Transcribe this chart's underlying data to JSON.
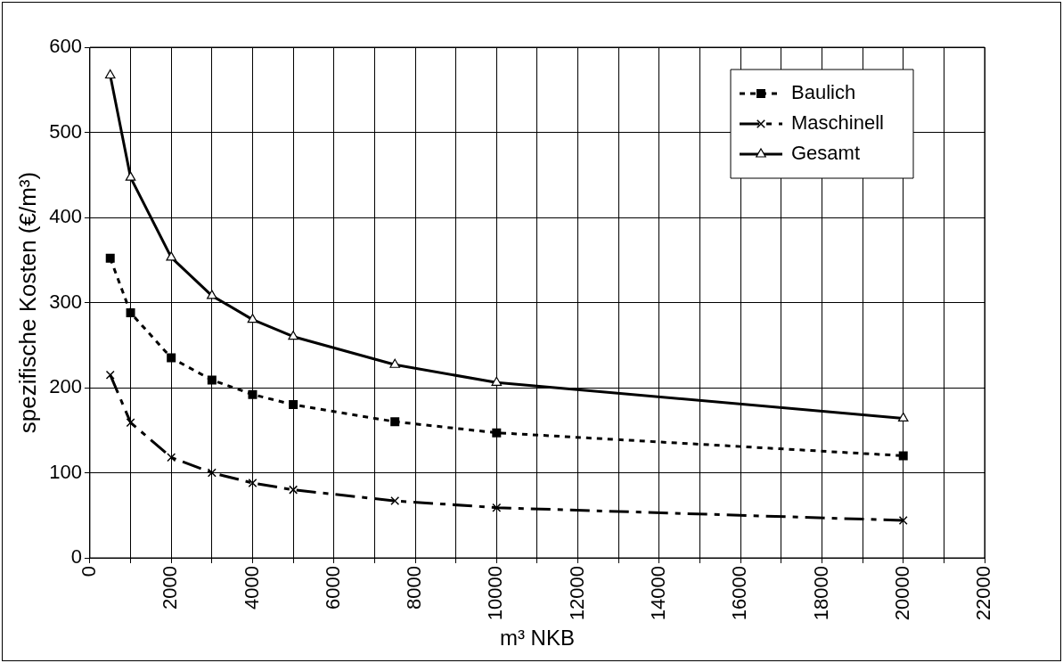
{
  "chart_data": {
    "type": "line",
    "xlabel": "m³ NKB",
    "ylabel": "spezifische Kosten (€/m³)",
    "x": [
      500,
      1000,
      2000,
      3000,
      4000,
      5000,
      7500,
      10000,
      20000
    ],
    "series": [
      {
        "name": "Baulich",
        "color": "#000000",
        "marker": "square",
        "line_style": "dotted",
        "values": [
          352,
          288,
          235,
          209,
          192,
          180,
          160,
          147,
          120
        ]
      },
      {
        "name": "Maschinell",
        "color": "#000000",
        "marker": "cross",
        "line_style": "dashed",
        "values": [
          215,
          159,
          118,
          100,
          88,
          80,
          67,
          59,
          44
        ]
      },
      {
        "name": "Gesamt",
        "color": "#000000",
        "marker": "triangle",
        "line_style": "solid",
        "values": [
          567,
          447,
          353,
          308,
          280,
          260,
          227,
          206,
          164
        ]
      }
    ],
    "xlim": [
      0,
      22000
    ],
    "xticks": [
      0,
      {
        "value": 1000,
        "label": null
      },
      2000,
      {
        "value": 3000,
        "label": null
      },
      4000,
      {
        "value": 5000,
        "label": null
      },
      6000,
      {
        "value": 7000,
        "label": null
      },
      8000,
      {
        "value": 9000,
        "label": null
      },
      10000,
      {
        "value": 11000,
        "label": null
      },
      12000,
      {
        "value": 13000,
        "label": null
      },
      14000,
      {
        "value": 15000,
        "label": null
      },
      16000,
      {
        "value": 17000,
        "label": null
      },
      18000,
      {
        "value": 19000,
        "label": null
      },
      20000,
      {
        "value": 21000,
        "label": null
      },
      22000
    ],
    "ylim": [
      0,
      600
    ],
    "yticks": [
      0,
      100,
      200,
      300,
      400,
      500,
      600
    ],
    "grid": true,
    "legend": "top right"
  }
}
